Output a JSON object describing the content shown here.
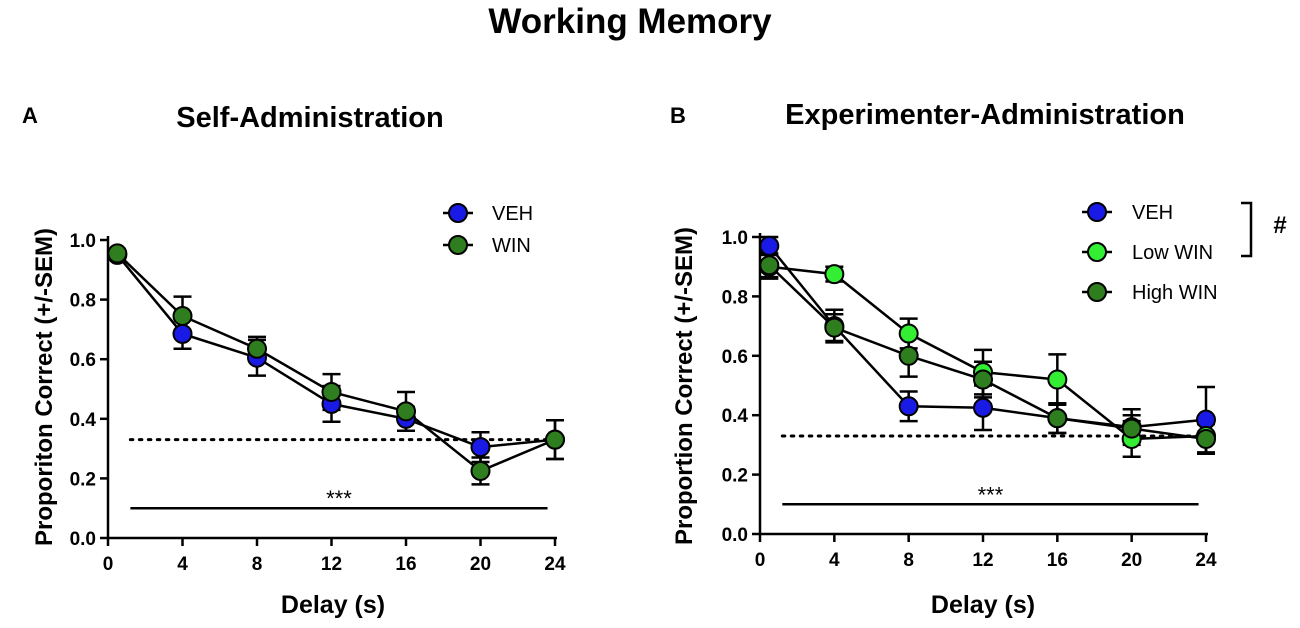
{
  "figure_title": "Working Memory",
  "colors": {
    "VEH": "#1a1ae6",
    "WIN": "#2e7d1e",
    "Low WIN": "#33ee33",
    "High WIN": "#2e7d1e",
    "axis": "#000000"
  },
  "chart_data": [
    {
      "panel_label": "A",
      "type": "line",
      "title": "Self-Administration",
      "xlabel": "Delay (s)",
      "ylabel": "Proporiton Correct (+/-SEM)",
      "xlim": [
        0,
        24
      ],
      "ylim": [
        0,
        1.0
      ],
      "xticks": [
        0,
        4,
        8,
        12,
        16,
        20,
        24
      ],
      "yticks": [
        "0.0",
        "0.2",
        "0.4",
        "0.6",
        "0.8",
        "1.0"
      ],
      "chance_level": 0.33,
      "significance": {
        "label": "***",
        "x_start": 1.2,
        "x_end": 23.6,
        "y": 0.1
      },
      "legend_location": "top-right",
      "series": [
        {
          "name": "VEH",
          "x": [
            0.5,
            4,
            8,
            12,
            16,
            20,
            24
          ],
          "values": [
            0.95,
            0.685,
            0.605,
            0.45,
            0.4,
            0.305,
            0.33
          ],
          "errors": [
            0.01,
            0.05,
            0.06,
            0.06,
            0.04,
            0.05,
            0.065
          ]
        },
        {
          "name": "WIN",
          "x": [
            0.5,
            4,
            8,
            12,
            16,
            20,
            24
          ],
          "values": [
            0.955,
            0.745,
            0.635,
            0.49,
            0.425,
            0.225,
            0.33
          ],
          "errors": [
            0.01,
            0.065,
            0.04,
            0.06,
            0.065,
            0.045,
            0.065
          ]
        }
      ]
    },
    {
      "panel_label": "B",
      "type": "line",
      "title": "Experimenter-Administration",
      "xlabel": "Delay (s)",
      "ylabel": "Proportion Correct (+/-SEM)",
      "xlim": [
        0,
        24
      ],
      "ylim": [
        0,
        1.0
      ],
      "xticks": [
        0,
        4,
        8,
        12,
        16,
        20,
        24
      ],
      "yticks": [
        "0.0",
        "0.2",
        "0.4",
        "0.6",
        "0.8",
        "1.0"
      ],
      "chance_level": 0.33,
      "significance": {
        "label": "***",
        "x_start": 1.2,
        "x_end": 23.6,
        "y": 0.1
      },
      "legend_location": "top-right",
      "legend_bracket_label": "#",
      "series": [
        {
          "name": "VEH",
          "x": [
            0.5,
            4,
            8,
            12,
            16,
            20,
            24
          ],
          "values": [
            0.97,
            0.7,
            0.43,
            0.425,
            0.39,
            0.36,
            0.385
          ],
          "errors": [
            0.03,
            0.055,
            0.05,
            0.075,
            0.05,
            0.06,
            0.11
          ]
        },
        {
          "name": "Low WIN",
          "x": [
            0.5,
            4,
            8,
            12,
            16,
            20,
            24
          ],
          "values": [
            0.9,
            0.875,
            0.675,
            0.545,
            0.52,
            0.32,
            0.33
          ],
          "errors": [
            0.04,
            0.025,
            0.05,
            0.075,
            0.085,
            0.06,
            0.06
          ]
        },
        {
          "name": "High WIN",
          "x": [
            0.5,
            4,
            8,
            12,
            16,
            20,
            24
          ],
          "values": [
            0.905,
            0.695,
            0.6,
            0.52,
            0.39,
            0.355,
            0.32
          ],
          "errors": [
            0.04,
            0.045,
            0.07,
            0.06,
            0.05,
            0.045,
            0.05
          ]
        }
      ]
    }
  ]
}
